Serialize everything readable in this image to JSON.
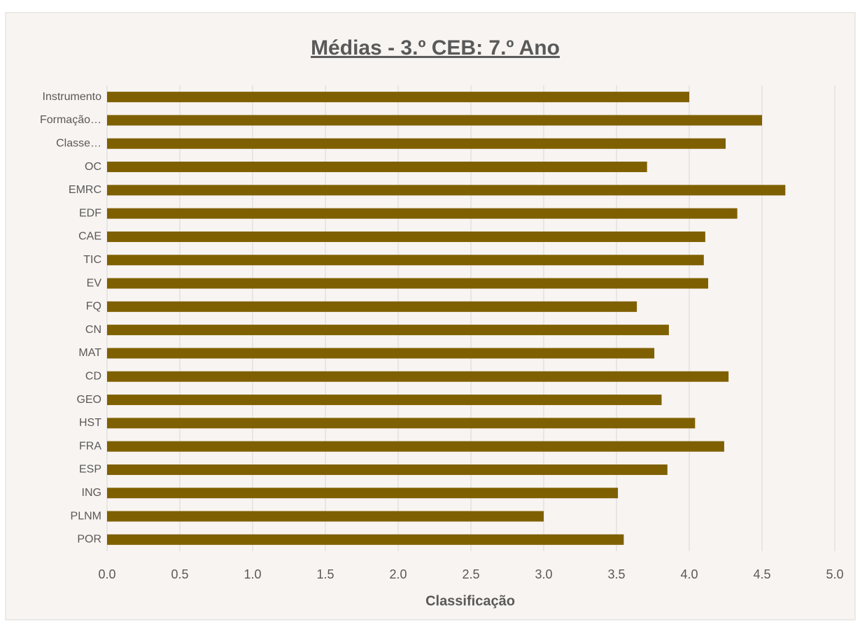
{
  "chart_data": {
    "type": "bar",
    "orientation": "horizontal",
    "title": "Médias - 3.º CEB: 7.º Ano",
    "x_axis_label": "Classificação",
    "categories": [
      "POR",
      "PLNM",
      "ING",
      "ESP",
      "FRA",
      "HST",
      "GEO",
      "CD",
      "MAT",
      "CN",
      "FQ",
      "EV",
      "TIC",
      "CAE",
      "EDF",
      "EMRC",
      "OC",
      "Classe…",
      "Formação…",
      "Instrumento"
    ],
    "values": [
      3.55,
      3.0,
      3.51,
      3.85,
      4.24,
      4.04,
      3.81,
      4.27,
      3.76,
      3.86,
      3.64,
      4.13,
      4.1,
      4.11,
      4.33,
      4.66,
      3.71,
      4.25,
      4.5,
      4.0
    ],
    "color": "#7f6000",
    "xlim": [
      0,
      5
    ],
    "xticks": [
      {
        "value": 0,
        "label": "0.0"
      },
      0.5,
      {
        "value": 1,
        "label": "1.0"
      },
      1.5,
      {
        "value": 2,
        "label": "2.0"
      },
      2.5,
      {
        "value": 3,
        "label": "3.0"
      },
      3.5,
      {
        "value": 4,
        "label": "4.0"
      },
      4.5,
      {
        "value": 5,
        "label": "5.0"
      }
    ],
    "grid": true
  }
}
